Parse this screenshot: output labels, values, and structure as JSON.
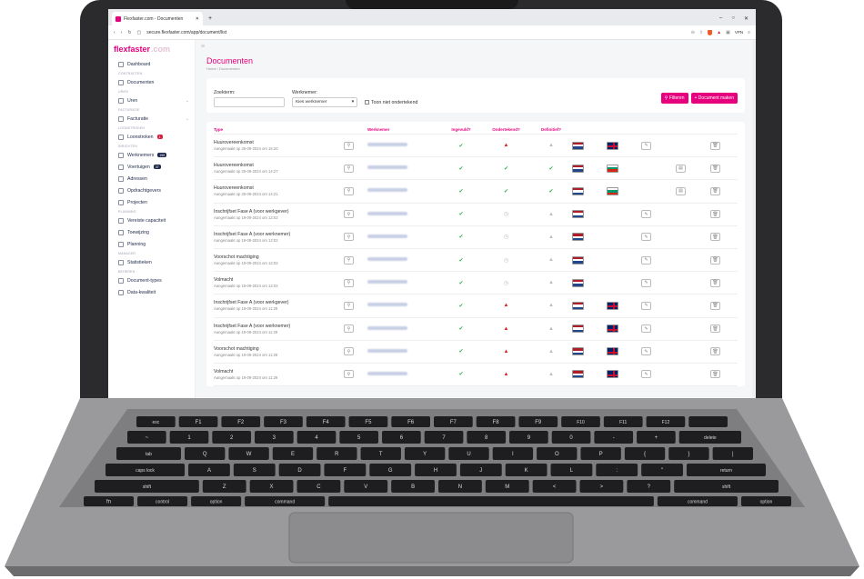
{
  "browser": {
    "tab_title": "Flexfaster.com - Documenten",
    "url": "secure.flexfaster.com/app/document/list",
    "vpn_label": "VPN"
  },
  "logo": {
    "brand": "flexfaster",
    "domain": ".com"
  },
  "sidebar": {
    "items": [
      {
        "type": "item",
        "label": "Dashboard",
        "icon": "grid-icon"
      },
      {
        "type": "section",
        "label": "CONTRACTEN"
      },
      {
        "type": "item",
        "label": "Documenten",
        "icon": "document-icon"
      },
      {
        "type": "section",
        "label": "UREN"
      },
      {
        "type": "item",
        "label": "Uren",
        "icon": "clock-icon",
        "chevron": true
      },
      {
        "type": "section",
        "label": "FACTURATIE"
      },
      {
        "type": "item",
        "label": "Facturatie",
        "icon": "euro-icon",
        "chevron": true
      },
      {
        "type": "section",
        "label": "LOONSTROKEN"
      },
      {
        "type": "item",
        "label": "Loonstroken",
        "icon": "payslip-icon",
        "badge": "1",
        "badge_style": "red"
      },
      {
        "type": "section",
        "label": "INRICHTEN"
      },
      {
        "type": "item",
        "label": "Werknemers",
        "icon": "users-icon",
        "badge": "158",
        "badge_style": "dark"
      },
      {
        "type": "item",
        "label": "Voertuigen",
        "icon": "car-icon",
        "badge": "37",
        "badge_style": "dark"
      },
      {
        "type": "item",
        "label": "Adressen",
        "icon": "home-icon"
      },
      {
        "type": "item",
        "label": "Opdrachtgevers",
        "icon": "client-icon"
      },
      {
        "type": "item",
        "label": "Projecten",
        "icon": "folder-icon"
      },
      {
        "type": "section",
        "label": "PLANNING"
      },
      {
        "type": "item",
        "label": "Vereiste capaciteit",
        "icon": "calendar-icon"
      },
      {
        "type": "item",
        "label": "Toewijzing",
        "icon": "assign-icon"
      },
      {
        "type": "item",
        "label": "Planning",
        "icon": "calendar-icon"
      },
      {
        "type": "section",
        "label": "MANAGER"
      },
      {
        "type": "item",
        "label": "Statistieken",
        "icon": "chart-icon"
      },
      {
        "type": "section",
        "label": "BEHEREN"
      },
      {
        "type": "item",
        "label": "Document-types",
        "icon": "document-icon"
      },
      {
        "type": "item",
        "label": "Data-kwaliteit",
        "icon": "bulb-icon"
      }
    ]
  },
  "page": {
    "title": "Documenten",
    "breadcrumb": "Home / Documenten"
  },
  "filters": {
    "search_label": "Zoekterm:",
    "search_value": "",
    "employee_label": "Werknemer:",
    "employee_value": "Kies werknemer",
    "unsigned_label": "Toon niet ondertekend",
    "filter_button": "Filteren",
    "create_button": "+ Document maken"
  },
  "table": {
    "headers": {
      "type": "Type",
      "employee": "Werknemer",
      "filled": "Ingevuld?",
      "signed": "Ondertekend?",
      "final": "Definitief?"
    },
    "rows": [
      {
        "type": "Huurovereenkomst",
        "created": "Aangemaakt op 25-09-2024 om 15:20",
        "filled": "ok",
        "signed": "warn",
        "final": "grey",
        "flag1": "nl",
        "flag2": "gb",
        "edit": true,
        "extra": false
      },
      {
        "type": "Huurovereenkomst",
        "created": "Aangemaakt op 25-09-2024 om 14:27",
        "filled": "ok",
        "signed": "ok",
        "final": "ok",
        "flag1": "nl",
        "flag2": "bg",
        "edit": false,
        "extra": true
      },
      {
        "type": "Huurovereenkomst",
        "created": "Aangemaakt op 25-09-2024 om 14:21",
        "filled": "ok",
        "signed": "ok",
        "final": "ok",
        "flag1": "nl",
        "flag2": "bg",
        "edit": false,
        "extra": true
      },
      {
        "type": "Inschrijfset Fase A (voor werkgever)",
        "created": "Aangemaakt op 19-09-2024 om 12:02",
        "filled": "ok",
        "signed": "clock",
        "final": "grey",
        "flag1": "nl",
        "flag2": "",
        "edit": true,
        "extra": false
      },
      {
        "type": "Inschrijfset Fase A (voor werknemer)",
        "created": "Aangemaakt op 19-09-2024 om 12:02",
        "filled": "ok",
        "signed": "clock",
        "final": "grey",
        "flag1": "nl",
        "flag2": "",
        "edit": true,
        "extra": false
      },
      {
        "type": "Voorschot machtiging",
        "created": "Aangemaakt op 19-09-2024 om 12:02",
        "filled": "ok",
        "signed": "clock",
        "final": "grey",
        "flag1": "nl",
        "flag2": "",
        "edit": true,
        "extra": false
      },
      {
        "type": "Volmacht",
        "created": "Aangemaakt op 19-09-2024 om 12:02",
        "filled": "ok",
        "signed": "clock",
        "final": "grey",
        "flag1": "nl",
        "flag2": "",
        "edit": true,
        "extra": false
      },
      {
        "type": "Inschrijfset Fase A (voor werkgever)",
        "created": "Aangemaakt op 19-09-2024 om 11:29",
        "filled": "ok",
        "signed": "warn",
        "final": "grey",
        "flag1": "nl",
        "flag2": "gb",
        "edit": true,
        "extra": false
      },
      {
        "type": "Inschrijfset Fase A (voor werknemer)",
        "created": "Aangemaakt op 19-09-2024 om 11:29",
        "filled": "ok",
        "signed": "warn",
        "final": "grey",
        "flag1": "nl",
        "flag2": "gb",
        "edit": true,
        "extra": false
      },
      {
        "type": "Voorschot machtiging",
        "created": "Aangemaakt op 19-09-2024 om 11:29",
        "filled": "ok",
        "signed": "warn",
        "final": "grey",
        "flag1": "nl",
        "flag2": "gb",
        "edit": true,
        "extra": false
      },
      {
        "type": "Volmacht",
        "created": "Aangemaakt op 19-09-2024 om 11:29",
        "filled": "ok",
        "signed": "warn",
        "final": "grey",
        "flag1": "nl",
        "flag2": "gb",
        "edit": true,
        "extra": false
      }
    ]
  },
  "keyboard": {
    "row1": [
      "esc",
      "F1",
      "F2",
      "F3",
      "F4",
      "F5",
      "F6",
      "F7",
      "F8",
      "F9",
      "F10",
      "F11",
      "F12",
      ""
    ],
    "row2": [
      "~",
      "1",
      "2",
      "3",
      "4",
      "5",
      "6",
      "7",
      "8",
      "9",
      "0",
      "-",
      "+",
      "delete"
    ],
    "row3": [
      "tab",
      "Q",
      "W",
      "E",
      "R",
      "T",
      "Y",
      "U",
      "I",
      "O",
      "P",
      "{",
      "}",
      "|"
    ],
    "row4": [
      "caps lock",
      "A",
      "S",
      "D",
      "F",
      "G",
      "H",
      "J",
      "K",
      "L",
      ":",
      "\"",
      "return"
    ],
    "row5": [
      "shift",
      "Z",
      "X",
      "C",
      "V",
      "B",
      "N",
      "M",
      "<",
      ">",
      "?",
      "shift"
    ],
    "row6": [
      "fn",
      "control",
      "option",
      "command",
      "",
      "command",
      "option"
    ]
  }
}
